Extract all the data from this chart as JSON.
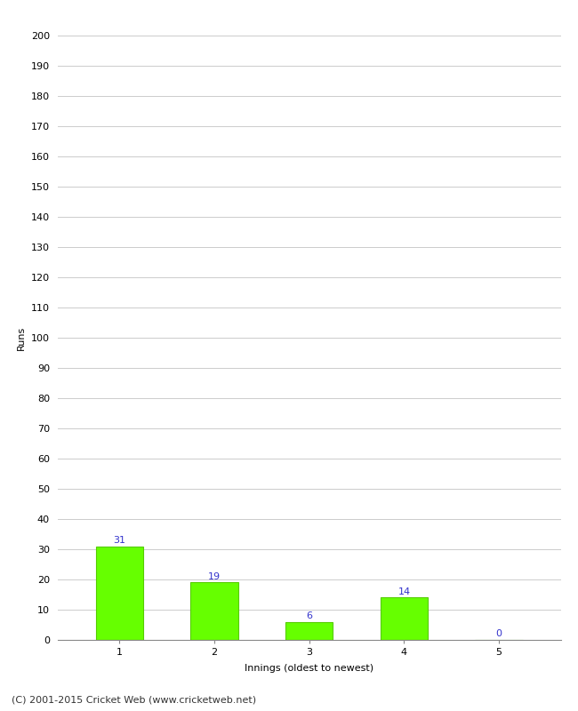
{
  "categories": [
    1,
    2,
    3,
    4,
    5
  ],
  "values": [
    31,
    19,
    6,
    14,
    0
  ],
  "bar_color": "#66ff00",
  "bar_edge_color": "#55cc00",
  "label_color": "#3333cc",
  "ylabel": "Runs",
  "xlabel": "Innings (oldest to newest)",
  "ylim": [
    0,
    200
  ],
  "yticks": [
    0,
    10,
    20,
    30,
    40,
    50,
    60,
    70,
    80,
    90,
    100,
    110,
    120,
    130,
    140,
    150,
    160,
    170,
    180,
    190,
    200
  ],
  "grid_color": "#cccccc",
  "background_color": "#ffffff",
  "footer_text": "(C) 2001-2015 Cricket Web (www.cricketweb.net)",
  "label_fontsize": 8,
  "axis_fontsize": 8,
  "footer_fontsize": 8,
  "bar_width": 0.5
}
